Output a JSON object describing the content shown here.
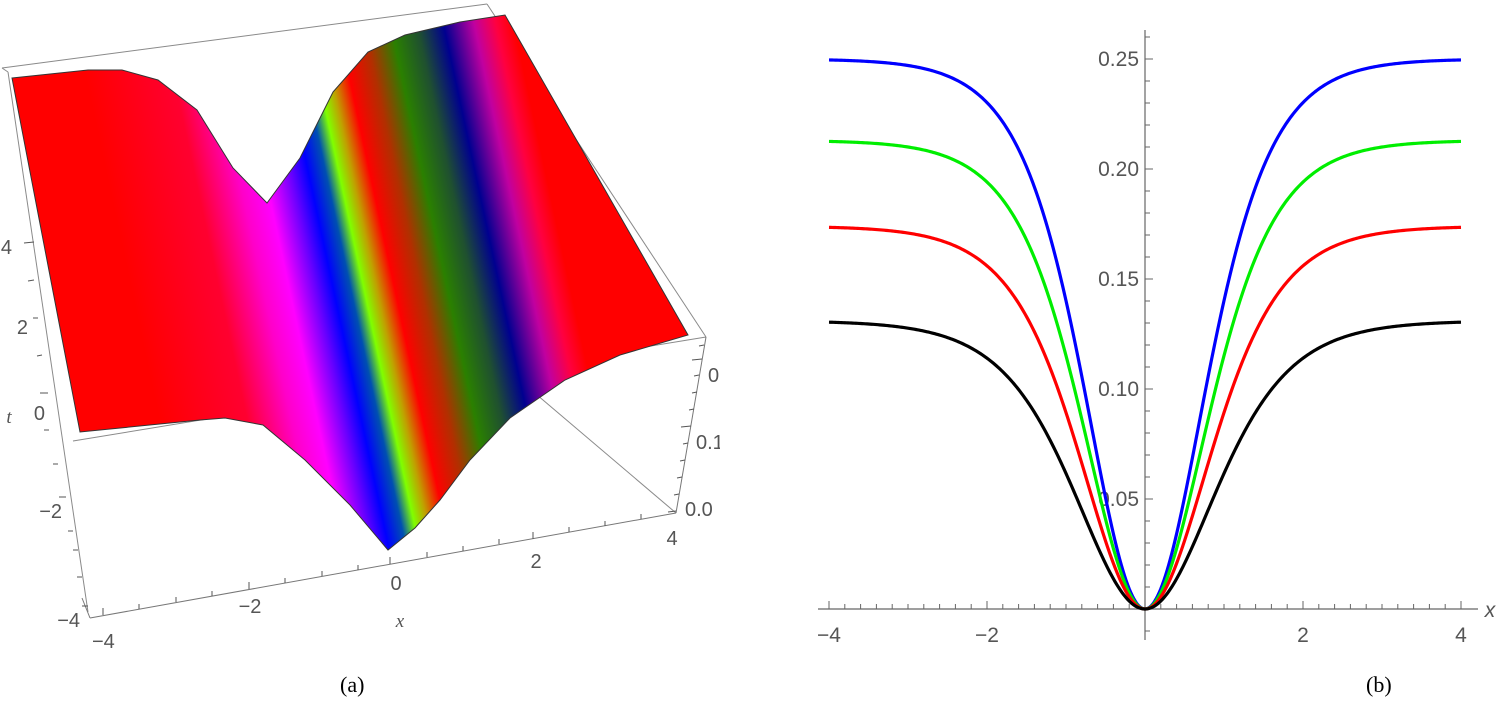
{
  "captions": {
    "a": "(a)",
    "b": "(b)"
  },
  "panel_a": {
    "x_label": "x",
    "t_label": "t",
    "x_ticks": [
      "-4",
      "-2",
      "0",
      "2",
      "4"
    ],
    "t_ticks": [
      "-4",
      "-2",
      "0",
      "2",
      "4"
    ],
    "z_ticks": [
      "0.0",
      "0.1",
      "0.2"
    ]
  },
  "panel_b": {
    "x_label": "x",
    "x_ticks": [
      "-4",
      "-2",
      "2",
      "4"
    ],
    "y_ticks": [
      "0.05",
      "0.10",
      "0.15",
      "0.20",
      "0.25"
    ]
  },
  "chart_data": [
    {
      "type": "surface3d",
      "panel": "(a)",
      "title": "",
      "xlabel": "x",
      "ylabel": "t",
      "zlabel": "",
      "xlim": [
        -4,
        4
      ],
      "ylim": [
        -4,
        4
      ],
      "zlim": [
        0.0,
        0.25
      ],
      "x_ticks": [
        -4,
        -2,
        0,
        2,
        4
      ],
      "y_ticks": [
        -4,
        -2,
        0,
        2,
        4
      ],
      "z_ticks": [
        0.0,
        0.1,
        0.2
      ],
      "description": "Dark-soliton (trough) surface: value near 0.25 away from the trough, dropping to 0 along a diagonal line in the x-t plane; surface colored with a hue gradient (red, magenta, blue, green, yellow-green, red)",
      "plateau_value": 0.25,
      "min_value": 0.0
    },
    {
      "type": "line",
      "panel": "(b)",
      "title": "",
      "xlabel": "x",
      "ylabel": "",
      "xlim": [
        -4,
        4
      ],
      "ylim": [
        0,
        0.26
      ],
      "x_ticks": [
        -4,
        -2,
        0,
        2,
        4
      ],
      "y_ticks": [
        0.05,
        0.1,
        0.15,
        0.2,
        0.25
      ],
      "grid": false,
      "legend": null,
      "x": [
        -4,
        -3.5,
        -3,
        -2.5,
        -2,
        -1.5,
        -1.25,
        -1,
        -0.75,
        -0.5,
        -0.25,
        0,
        0.25,
        0.5,
        0.75,
        1,
        1.25,
        1.5,
        2,
        2.5,
        3,
        3.5,
        4
      ],
      "series": [
        {
          "name": "blue",
          "color": "#0000ff",
          "values": [
            0.25,
            0.25,
            0.249,
            0.248,
            0.242,
            0.222,
            0.2,
            0.168,
            0.118,
            0.058,
            0.015,
            0.0,
            0.015,
            0.058,
            0.118,
            0.168,
            0.2,
            0.222,
            0.242,
            0.248,
            0.249,
            0.25,
            0.25
          ]
        },
        {
          "name": "green",
          "color": "#00ee00",
          "values": [
            0.213,
            0.213,
            0.212,
            0.21,
            0.204,
            0.185,
            0.165,
            0.136,
            0.094,
            0.046,
            0.012,
            0.0,
            0.012,
            0.046,
            0.094,
            0.136,
            0.165,
            0.185,
            0.204,
            0.21,
            0.212,
            0.213,
            0.213
          ]
        },
        {
          "name": "red",
          "color": "#ff0000",
          "values": [
            0.174,
            0.174,
            0.173,
            0.171,
            0.165,
            0.147,
            0.129,
            0.104,
            0.071,
            0.034,
            0.009,
            0.0,
            0.009,
            0.034,
            0.071,
            0.104,
            0.129,
            0.147,
            0.165,
            0.171,
            0.173,
            0.174,
            0.174
          ]
        },
        {
          "name": "black",
          "color": "#000000",
          "values": [
            0.131,
            0.131,
            0.13,
            0.128,
            0.122,
            0.106,
            0.092,
            0.073,
            0.048,
            0.022,
            0.006,
            0.0,
            0.006,
            0.022,
            0.048,
            0.073,
            0.092,
            0.106,
            0.122,
            0.128,
            0.13,
            0.131,
            0.131
          ]
        }
      ]
    }
  ]
}
